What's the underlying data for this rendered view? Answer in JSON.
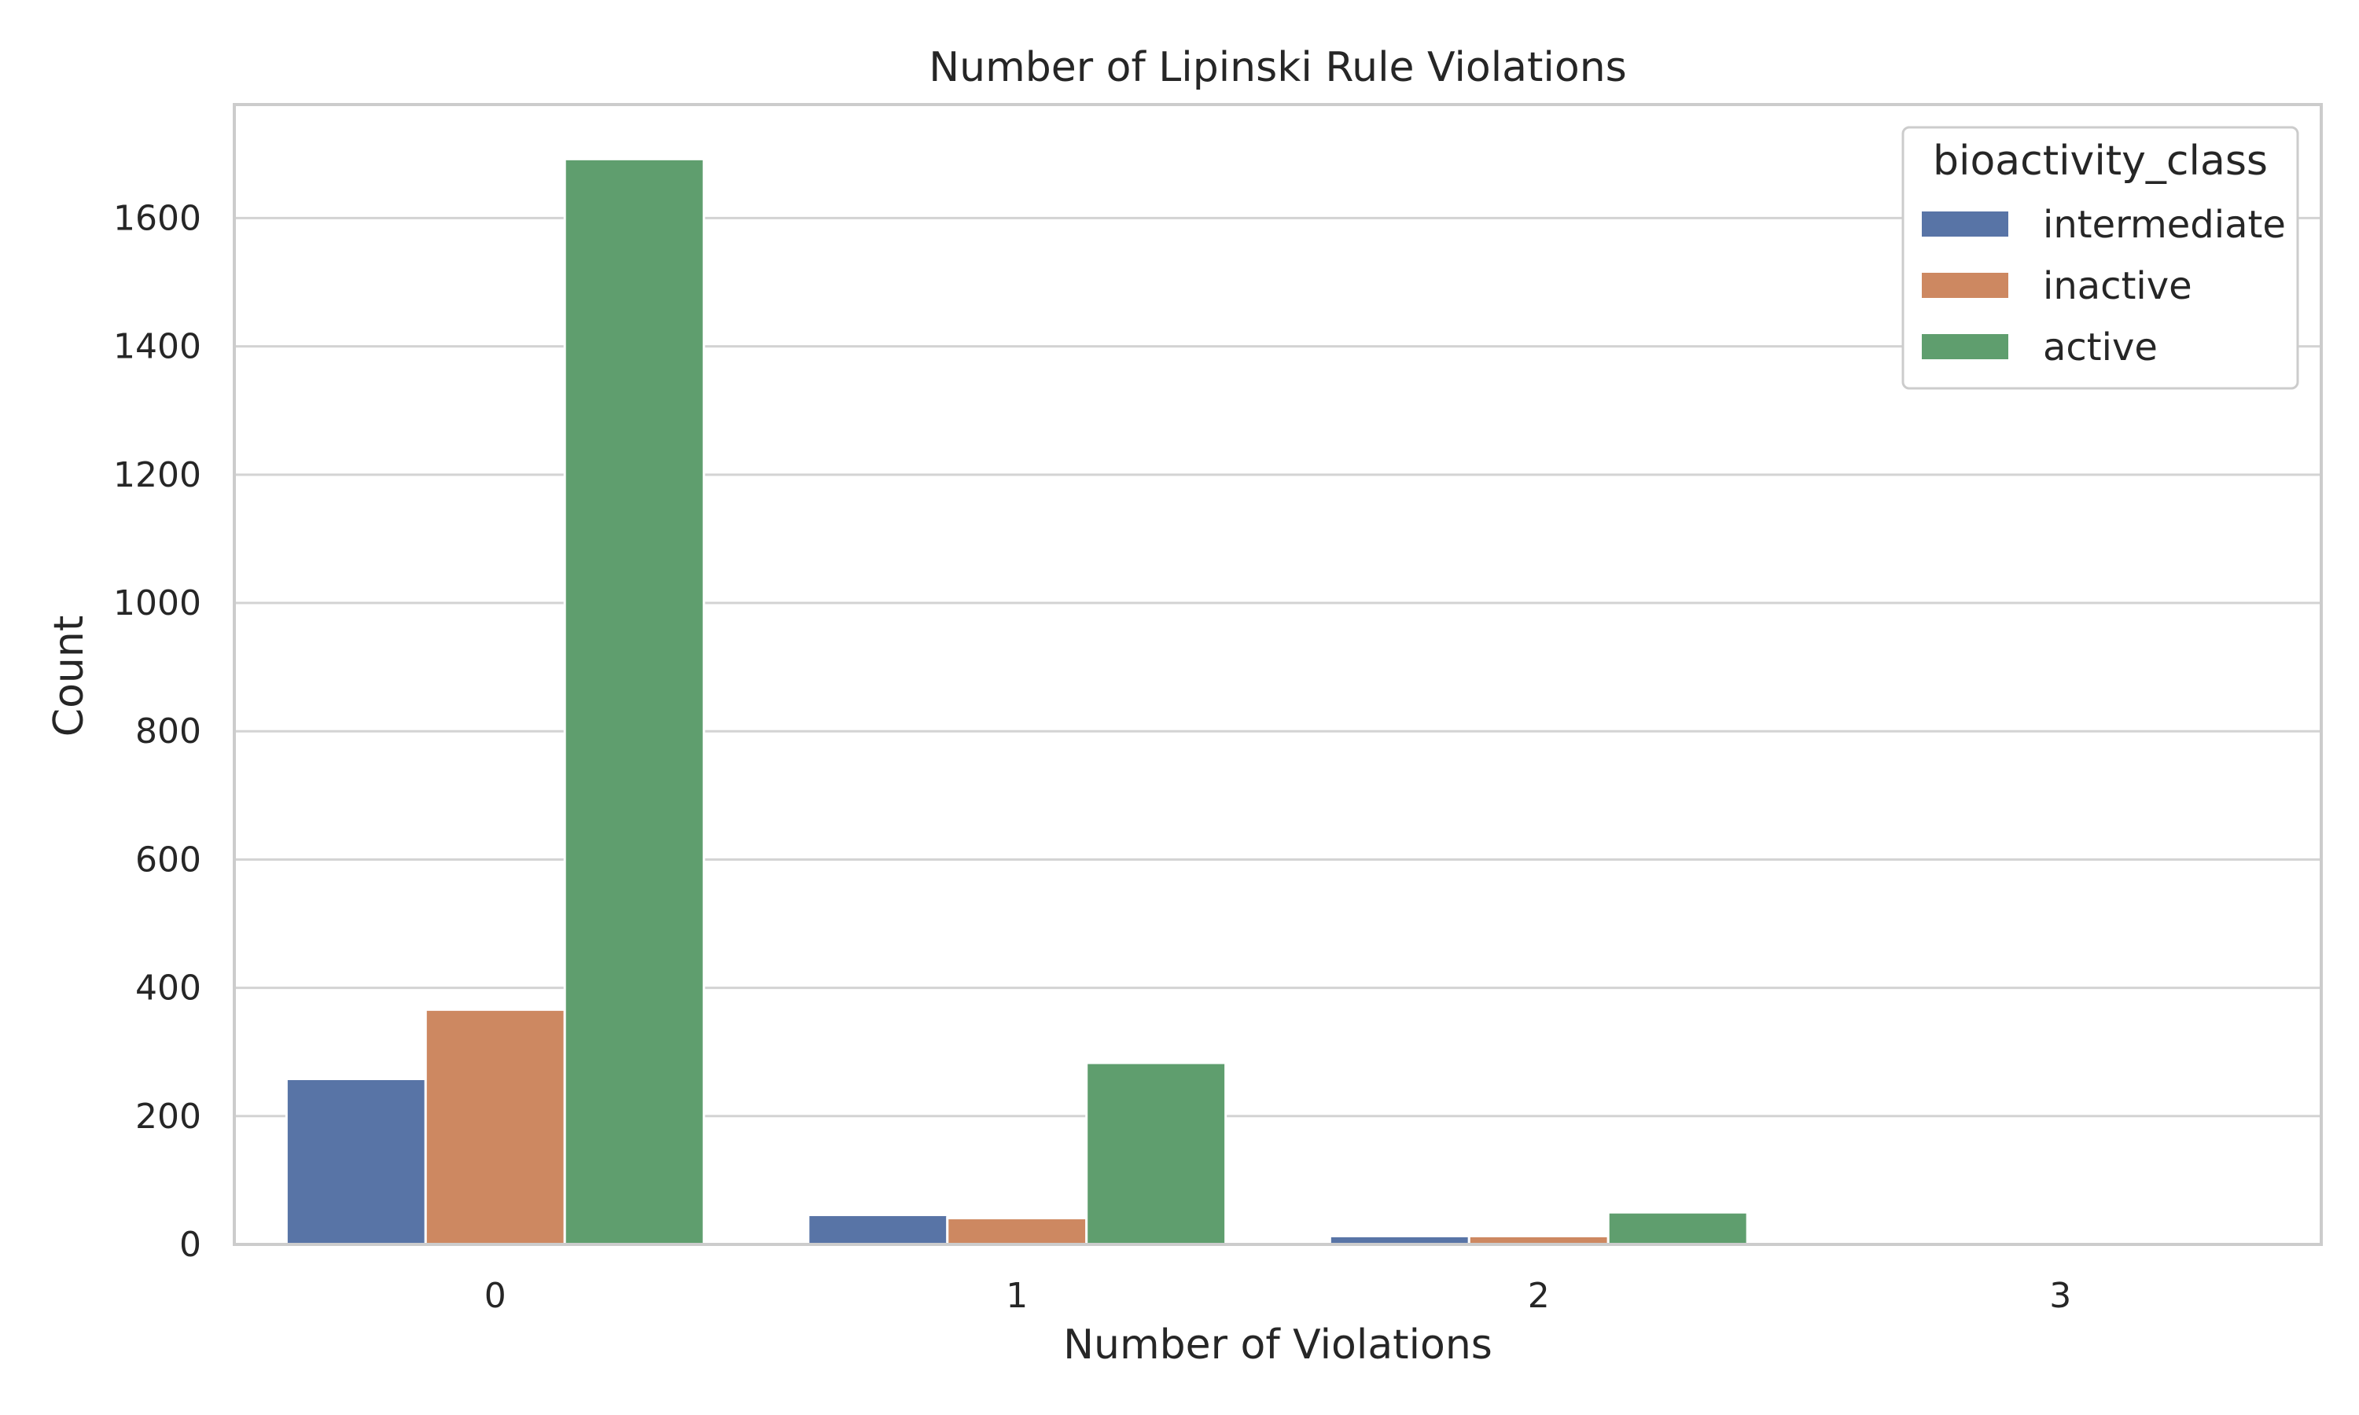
{
  "chart_data": {
    "type": "bar",
    "title": "Number of Lipinski Rule Violations",
    "xlabel": "Number of Violations",
    "ylabel": "Count",
    "categories": [
      "0",
      "1",
      "2",
      "3"
    ],
    "series": [
      {
        "name": "intermediate",
        "color": "#5874a6",
        "values": [
          258,
          46,
          13,
          0
        ]
      },
      {
        "name": "inactive",
        "color": "#cd8861",
        "values": [
          366,
          41,
          13,
          0
        ]
      },
      {
        "name": "active",
        "color": "#5f9e6e",
        "values": [
          1692,
          283,
          50,
          2
        ]
      }
    ],
    "ylim": [
      0,
      1777
    ],
    "yticks": [
      0,
      200,
      400,
      600,
      800,
      1000,
      1200,
      1400,
      1600
    ],
    "legend": {
      "title": "bioactivity_class",
      "position": "top-right"
    },
    "grid": "horizontal",
    "background": "#ffffff",
    "grid_color": "#d3d3d3",
    "frame_color": "#cccccc"
  }
}
